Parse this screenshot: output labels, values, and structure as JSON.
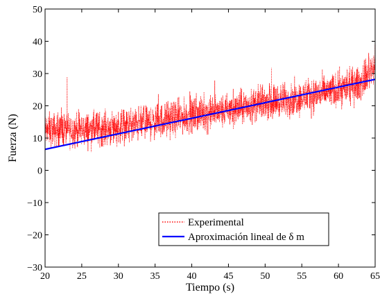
{
  "chart_data": {
    "type": "line",
    "title": "",
    "xlabel": "Tiempo (s)",
    "ylabel": "Fuerza (N)",
    "xlim": [
      20,
      65
    ],
    "ylim": [
      -30,
      50
    ],
    "xticks": [
      20,
      25,
      30,
      35,
      40,
      45,
      50,
      55,
      60,
      65
    ],
    "yticks": [
      -30,
      -20,
      -10,
      0,
      10,
      20,
      30,
      40,
      50
    ],
    "grid": false,
    "legend_position": "lower-right",
    "series": [
      {
        "name": "Experimental",
        "style": "dotted",
        "color": "#ff0000",
        "description_values": "noisy signal, approx. mean rising from 12 to 33 with spread ±6",
        "x_range": [
          20,
          65
        ],
        "envelope": {
          "x": [
            20,
            25,
            30,
            35,
            40,
            45,
            50,
            55,
            60,
            63,
            65
          ],
          "mean": [
            12.5,
            12.5,
            13.5,
            15,
            17,
            18.5,
            21,
            22.5,
            25,
            27,
            33
          ]
        }
      },
      {
        "name": "Aproximación lineal de δ m",
        "style": "solid",
        "color": "#0000ff",
        "x": [
          20,
          65
        ],
        "y": [
          6.5,
          28.2
        ]
      }
    ]
  }
}
